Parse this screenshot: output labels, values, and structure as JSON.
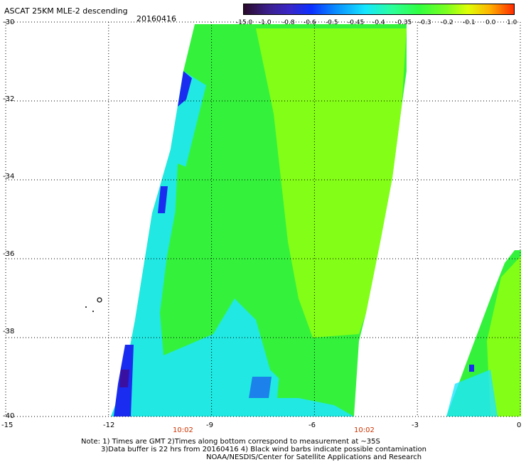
{
  "header": {
    "title": "ASCAT 25KM MLE-2 descending",
    "date": "20160416"
  },
  "colorbar": {
    "ticks": [
      "-15.0",
      "-1.0",
      "-0.8",
      "-0.6",
      "-0.5",
      "-0.45",
      "-0.4",
      "-0.35",
      "-0.3",
      "-0.2",
      "-0.1",
      "0.0",
      "1.0"
    ]
  },
  "axes": {
    "lat_labels": [
      "-30",
      "-32",
      "-34",
      "-36",
      "-38",
      "-40"
    ],
    "lon_labels": [
      "-15",
      "-12",
      "-9",
      "-6",
      "-3",
      "0"
    ],
    "times": [
      "10:02",
      "10:02"
    ]
  },
  "notes": {
    "line1": "Note: 1) Times are GMT 2)Times along bottom correspond to measurement at ~35S",
    "line2": "3)Data buffer is 22 hrs from 20160416 4) Black wind barbs indicate possible contamination",
    "line3": "NOAA/NESDIS/Center for Satellite Applications and Research"
  },
  "map": {
    "lat_range": [
      -40,
      -30
    ],
    "lon_range": [
      -15,
      0
    ],
    "colors": {
      "grid": "#000000",
      "green": "#34f23c",
      "lime": "#8cff12",
      "cyan": "#1ee6ff",
      "blue": "#1a2cf0",
      "purple": "#3a10a0"
    }
  }
}
